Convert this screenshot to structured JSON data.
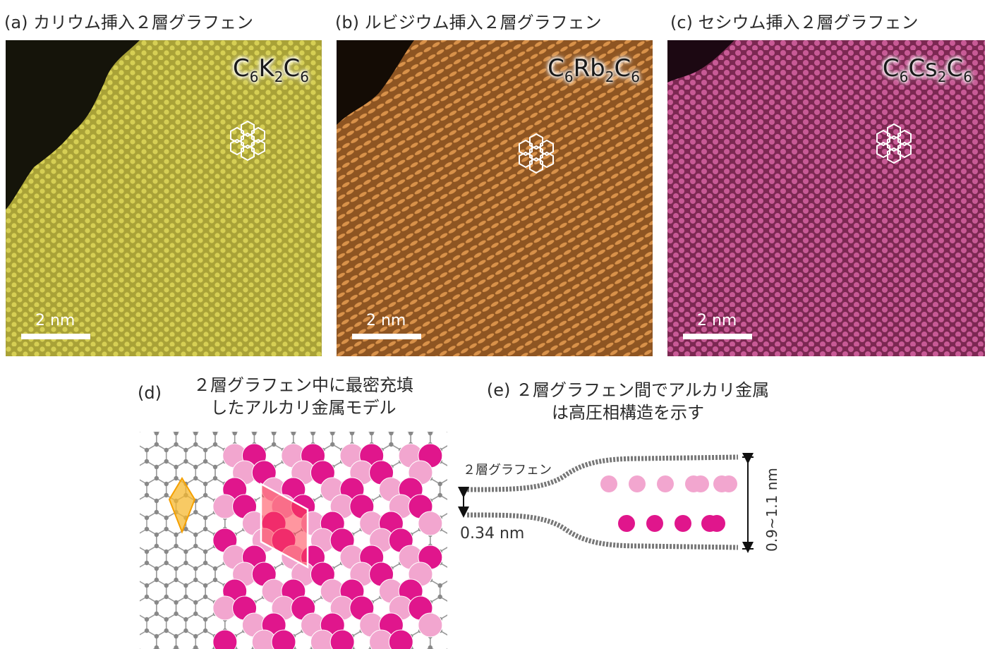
{
  "panels": [
    {
      "caption": "(a) カリウム挿入２層グラフェン",
      "formula": {
        "a": "C",
        "s1": "6",
        "b": "K",
        "s2": "2",
        "c": "C",
        "s3": "6"
      },
      "scale": "2 nm",
      "color": "#c8c040",
      "dark": "#8a8420"
    },
    {
      "caption": "(b) ルビジウム挿入２層グラフェン",
      "formula": {
        "a": "C",
        "s1": "6",
        "b": "Rb",
        "s2": "2",
        "c": "C",
        "s3": "6"
      },
      "scale": "2 nm",
      "color": "#c8843c",
      "dark": "#7a4c1c"
    },
    {
      "caption": "(c) セシウム挿入２層グラフェン",
      "formula": {
        "a": "C",
        "s1": "6",
        "b": "Cs",
        "s2": "2",
        "c": "C",
        "s3": "6"
      },
      "scale": "2 nm",
      "color": "#c84888",
      "dark": "#7a2450"
    }
  ],
  "panel_d": {
    "label": "(d)",
    "title_line1": "２層グラフェン中に最密充填",
    "title_line2": "したアルカリ金属モデル"
  },
  "panel_e": {
    "title_line1": "(e) ２層グラフェン間でアルカリ金属",
    "title_line2": "は高圧相構造を示す",
    "bilayer_label": "２層グラフェン",
    "spacing_label": "0.34 nm",
    "expanded_label": "0.9~1.1 nm"
  },
  "colors": {
    "light_pink": "#f2a6cf",
    "magenta": "#e0168c",
    "carbon": "#888888",
    "cell_yellow": "#f5b830",
    "cell_red": "#ff5060"
  }
}
